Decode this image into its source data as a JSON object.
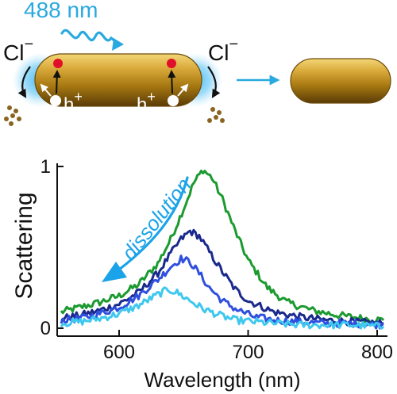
{
  "schematic": {
    "laser_label": "488 nm",
    "ion_left": "Cl",
    "ion_left_sup": "−",
    "ion_right": "Cl",
    "ion_right_sup": "−",
    "hole_left": "h",
    "hole_left_sup": "+",
    "hole_right": "h",
    "hole_right_sup": "+",
    "colors": {
      "laser": "#29a9e0",
      "gold": "#b8891f",
      "glow": "#3fb6f0",
      "electron": "#e0102a",
      "debris": "#8a6420"
    }
  },
  "annotation": {
    "text": "dissolution",
    "color": "#1aa3e8"
  },
  "chart_data": {
    "type": "line",
    "title": "",
    "xlabel": "Wavelength (nm)",
    "ylabel": "Scattering",
    "xlim": [
      552,
      808
    ],
    "ylim": [
      0,
      1
    ],
    "x_ticks": [
      600,
      700,
      800
    ],
    "y_ticks": [
      0,
      1
    ],
    "grid": false,
    "legend": "none",
    "series": [
      {
        "color": "#1b9a2f",
        "points": [
          [
            555,
            0.1
          ],
          [
            570,
            0.13
          ],
          [
            585,
            0.16
          ],
          [
            600,
            0.2
          ],
          [
            615,
            0.27
          ],
          [
            630,
            0.4
          ],
          [
            640,
            0.55
          ],
          [
            650,
            0.74
          ],
          [
            658,
            0.9
          ],
          [
            665,
            0.98
          ],
          [
            672,
            0.93
          ],
          [
            680,
            0.8
          ],
          [
            690,
            0.6
          ],
          [
            700,
            0.42
          ],
          [
            715,
            0.25
          ],
          [
            730,
            0.16
          ],
          [
            750,
            0.11
          ],
          [
            770,
            0.08
          ],
          [
            790,
            0.06
          ],
          [
            805,
            0.05
          ]
        ]
      },
      {
        "color": "#1a2a8c",
        "points": [
          [
            555,
            0.06
          ],
          [
            570,
            0.08
          ],
          [
            585,
            0.11
          ],
          [
            600,
            0.15
          ],
          [
            615,
            0.22
          ],
          [
            630,
            0.34
          ],
          [
            640,
            0.46
          ],
          [
            648,
            0.55
          ],
          [
            655,
            0.6
          ],
          [
            662,
            0.57
          ],
          [
            670,
            0.47
          ],
          [
            680,
            0.35
          ],
          [
            690,
            0.24
          ],
          [
            700,
            0.17
          ],
          [
            720,
            0.1
          ],
          [
            740,
            0.07
          ],
          [
            760,
            0.05
          ],
          [
            780,
            0.04
          ],
          [
            805,
            0.03
          ]
        ]
      },
      {
        "color": "#2f4fdf",
        "points": [
          [
            555,
            0.05
          ],
          [
            570,
            0.06
          ],
          [
            585,
            0.09
          ],
          [
            600,
            0.13
          ],
          [
            615,
            0.2
          ],
          [
            630,
            0.3
          ],
          [
            640,
            0.38
          ],
          [
            648,
            0.43
          ],
          [
            655,
            0.41
          ],
          [
            662,
            0.34
          ],
          [
            670,
            0.25
          ],
          [
            680,
            0.17
          ],
          [
            690,
            0.12
          ],
          [
            705,
            0.07
          ],
          [
            720,
            0.05
          ],
          [
            740,
            0.04
          ],
          [
            760,
            0.03
          ],
          [
            780,
            0.03
          ],
          [
            805,
            0.02
          ]
        ]
      },
      {
        "color": "#3fc8ee",
        "points": [
          [
            555,
            0.03
          ],
          [
            570,
            0.04
          ],
          [
            585,
            0.06
          ],
          [
            600,
            0.09
          ],
          [
            615,
            0.14
          ],
          [
            628,
            0.2
          ],
          [
            638,
            0.24
          ],
          [
            645,
            0.22
          ],
          [
            655,
            0.17
          ],
          [
            665,
            0.12
          ],
          [
            678,
            0.08
          ],
          [
            690,
            0.05
          ],
          [
            705,
            0.04
          ],
          [
            720,
            0.03
          ],
          [
            740,
            0.02
          ],
          [
            760,
            0.02
          ],
          [
            780,
            0.02
          ],
          [
            805,
            0.01
          ]
        ]
      }
    ]
  }
}
